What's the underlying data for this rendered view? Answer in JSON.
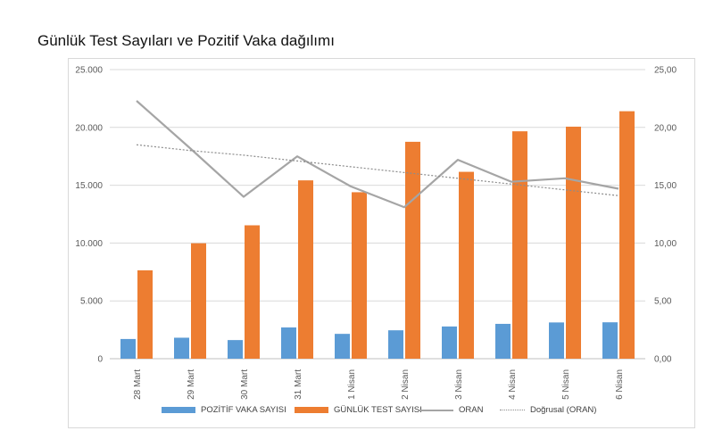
{
  "title": "Günlük Test Sayıları ve Pozitif Vaka dağılımı",
  "colors": {
    "positive": "#5b9bd5",
    "tests": "#ed7d31",
    "ratio": "#a5a5a5",
    "trend": "#a5a5a5",
    "grid": "#d9d9d9",
    "axis_text": "#595959"
  },
  "chart_data": {
    "type": "bar",
    "categories": [
      "28 Mart",
      "29 Mart",
      "30 Mart",
      "31 Mart",
      "1 Nisan",
      "2 Nisan",
      "3 Nisan",
      "4 Nisan",
      "5 Nisan",
      "6 Nisan"
    ],
    "series": [
      {
        "name": "POZİTİF VAKA SAYISI",
        "type": "bar",
        "axis": "left",
        "values": [
          1704,
          1815,
          1610,
          2704,
          2148,
          2456,
          2786,
          3013,
          3135,
          3148
        ]
      },
      {
        "name": "GÜNLÜK TEST SAYISI",
        "type": "bar",
        "axis": "left",
        "values": [
          7641,
          9982,
          11535,
          15422,
          14396,
          18757,
          16160,
          19664,
          20065,
          21400
        ]
      },
      {
        "name": "ORAN",
        "type": "line",
        "axis": "right",
        "values": [
          22.3,
          18.2,
          14.0,
          17.5,
          14.9,
          13.1,
          17.2,
          15.3,
          15.6,
          14.7
        ]
      },
      {
        "name": "Doğrusal (ORAN)",
        "type": "trendline",
        "axis": "right",
        "values": [
          18.5,
          18.0,
          17.6,
          17.1,
          16.6,
          16.1,
          15.6,
          15.1,
          14.6,
          14.1
        ]
      }
    ],
    "y_left": {
      "ylim": [
        0,
        25000
      ],
      "ticks": [
        "0",
        "5.000",
        "10.000",
        "15.000",
        "20.000",
        "25.000"
      ]
    },
    "y_right": {
      "ylim": [
        0,
        25
      ],
      "ticks": [
        "0,00",
        "5,00",
        "10,00",
        "15,00",
        "20,00",
        "25,00"
      ]
    },
    "grid": true,
    "legend_position": "bottom"
  }
}
